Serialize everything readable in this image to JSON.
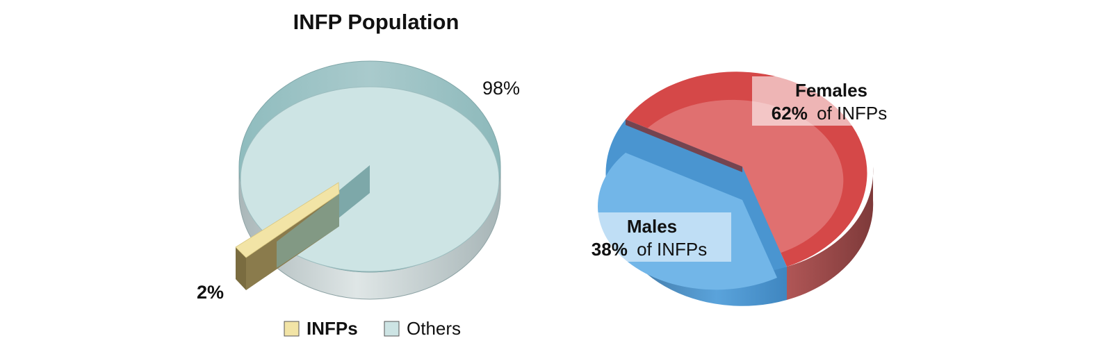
{
  "chart_data": [
    {
      "type": "pie",
      "title": "INFP Population",
      "categories": [
        "INFPs",
        "Others"
      ],
      "values": [
        2,
        98
      ],
      "value_labels": [
        "2%",
        "98%"
      ],
      "legend": {
        "placement": "bottom",
        "items": [
          "INFPs",
          "Others"
        ]
      },
      "colors": [
        "#f2e4a6",
        "#cde4e4"
      ],
      "style": "3d-exploded"
    },
    {
      "type": "pie",
      "title": "",
      "categories": [
        "Females",
        "Males"
      ],
      "values": [
        62,
        38
      ],
      "value_labels": [
        "62%",
        "38%"
      ],
      "label_suffix": "of INFPs",
      "colors": [
        "#e07070",
        "#72b6e8"
      ],
      "style": "3d"
    }
  ]
}
